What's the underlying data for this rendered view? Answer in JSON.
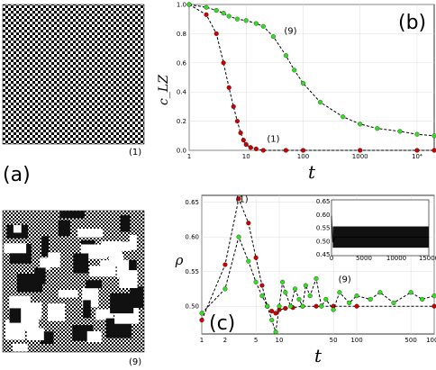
{
  "panels": {
    "a_label": "(a)",
    "b_label": "(b)",
    "c_label": "(c)",
    "img_top_caption": "(1)",
    "img_bottom_caption": "(9)"
  },
  "chart_data": [
    {
      "type": "line",
      "panel": "(b)",
      "xlabel": "t",
      "ylabel": "c_LZ",
      "xscale": "log",
      "xlim": [
        1,
        20000
      ],
      "ylim": [
        0,
        1.0
      ],
      "xticks": [
        "1",
        "10",
        "100",
        "1000",
        "10⁴"
      ],
      "yticks": [
        "0.0",
        "0.2",
        "0.4",
        "0.6",
        "0.8",
        "1.0"
      ],
      "grid": true,
      "annotations": [
        "(9)",
        "(1)"
      ],
      "series": [
        {
          "name": "(1)",
          "color": "#cc0000",
          "x": [
            1,
            2,
            3,
            4,
            5,
            6,
            7,
            8,
            9,
            10,
            12,
            15,
            20,
            50,
            100,
            1000,
            10000,
            20000
          ],
          "y": [
            1.0,
            0.93,
            0.8,
            0.6,
            0.43,
            0.3,
            0.2,
            0.12,
            0.07,
            0.04,
            0.02,
            0.01,
            0.0,
            0.0,
            0.0,
            0.0,
            0.0,
            0.0
          ]
        },
        {
          "name": "(9)",
          "color": "#33dd22",
          "x": [
            1,
            2,
            3,
            4,
            5,
            7,
            10,
            15,
            20,
            30,
            50,
            70,
            100,
            200,
            500,
            1000,
            2000,
            5000,
            10000,
            20000
          ],
          "y": [
            1.0,
            0.98,
            0.96,
            0.94,
            0.92,
            0.9,
            0.89,
            0.87,
            0.85,
            0.78,
            0.65,
            0.55,
            0.46,
            0.33,
            0.23,
            0.18,
            0.15,
            0.13,
            0.11,
            0.1
          ]
        }
      ]
    },
    {
      "type": "line",
      "panel": "(c)",
      "xlabel": "t",
      "ylabel": "ρ",
      "xscale": "log",
      "xlim": [
        1,
        1000
      ],
      "ylim": [
        0.46,
        0.66
      ],
      "xticks": [
        "1",
        "5",
        "10",
        "50",
        "100",
        "500",
        "1000"
      ],
      "xticks_minor": [
        "2"
      ],
      "yticks": [
        "0.50",
        "0.55",
        "0.60",
        "0.65"
      ],
      "grid": true,
      "annotations": [
        "(1)",
        "(9)"
      ],
      "series": [
        {
          "name": "(1)",
          "color": "#cc0000",
          "x": [
            1,
            2,
            3,
            4,
            5,
            6,
            7,
            8,
            9,
            10,
            12,
            15,
            20,
            30,
            50,
            100,
            1000
          ],
          "y": [
            0.48,
            0.56,
            0.655,
            0.62,
            0.57,
            0.53,
            0.5,
            0.493,
            0.49,
            0.495,
            0.497,
            0.498,
            0.5,
            0.5,
            0.5,
            0.5,
            0.5
          ]
        },
        {
          "name": "(9)",
          "color": "#33dd22",
          "x": [
            1,
            2,
            3,
            4,
            5,
            6,
            7,
            8,
            9,
            10,
            11,
            12,
            14,
            16,
            18,
            20,
            22,
            25,
            30,
            35,
            40,
            50,
            60,
            80,
            100,
            150,
            200,
            300,
            500,
            700,
            1000
          ],
          "y": [
            0.49,
            0.525,
            0.6,
            0.565,
            0.535,
            0.515,
            0.5,
            0.48,
            0.463,
            0.5,
            0.535,
            0.52,
            0.5,
            0.525,
            0.51,
            0.5,
            0.53,
            0.515,
            0.54,
            0.5,
            0.51,
            0.495,
            0.52,
            0.505,
            0.515,
            0.51,
            0.52,
            0.505,
            0.52,
            0.51,
            0.515
          ]
        }
      ]
    },
    {
      "type": "line",
      "panel": "(c) inset",
      "xlim": [
        0,
        15000
      ],
      "ylim": [
        0.45,
        0.66
      ],
      "xticks": [
        "0",
        "5000",
        "10000",
        "15000"
      ],
      "yticks": [
        "0.45",
        "0.50",
        "0.55",
        "0.60",
        "0.65"
      ],
      "series": [
        {
          "color": "#000000",
          "x": [
            0,
            200,
            500,
            15000
          ],
          "y": [
            0.6,
            0.5,
            0.52,
            0.52
          ],
          "band": [
            0.48,
            0.56
          ]
        }
      ]
    }
  ]
}
